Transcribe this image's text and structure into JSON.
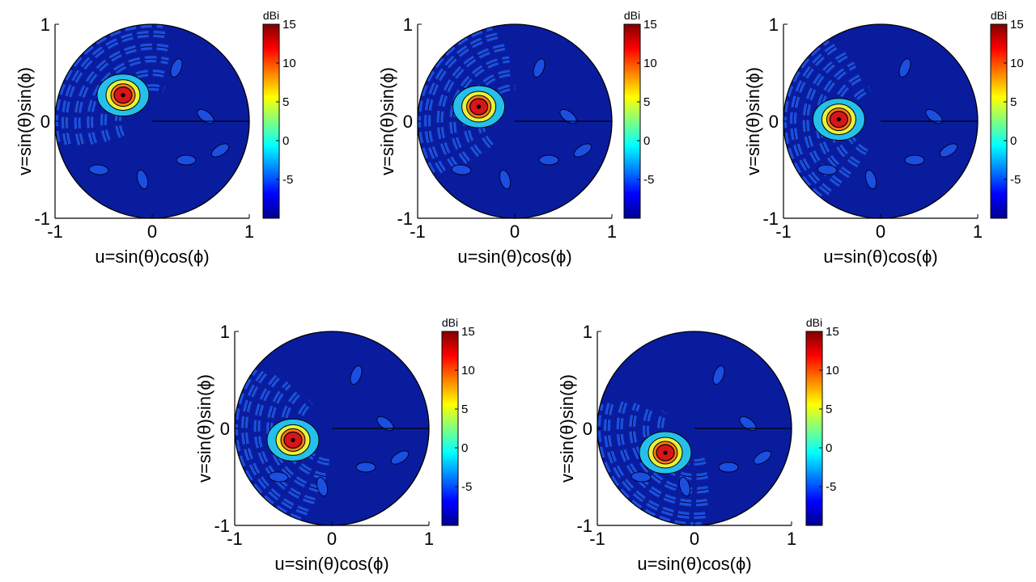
{
  "chart_data": [
    {
      "type": "heatmap",
      "xlabel": "u=sin(θ)cos(ϕ)",
      "ylabel": "v=sin(θ)sin(ϕ)",
      "xlim": [
        -1,
        1
      ],
      "ylim": [
        -1,
        1
      ],
      "x_ticks": [
        "-1",
        "0",
        "1"
      ],
      "y_ticks": [
        "-1",
        "0",
        "1"
      ],
      "colorbar": {
        "title": "dBi",
        "range": [
          -10,
          15
        ],
        "ticks": [
          "15",
          "10",
          "5",
          "0",
          "-5"
        ]
      },
      "peak": {
        "u": -0.3,
        "v": 0.27,
        "value_dbi": 15
      }
    },
    {
      "type": "heatmap",
      "xlabel": "u=sin(θ)cos(ϕ)",
      "ylabel": "v=sin(θ)sin(ϕ)",
      "xlim": [
        -1,
        1
      ],
      "ylim": [
        -1,
        1
      ],
      "x_ticks": [
        "-1",
        "0",
        "1"
      ],
      "y_ticks": [
        "-1",
        "0",
        "1"
      ],
      "colorbar": {
        "title": "dBi",
        "range": [
          -10,
          15
        ],
        "ticks": [
          "15",
          "10",
          "5",
          "0",
          "-5"
        ]
      },
      "peak": {
        "u": -0.37,
        "v": 0.15,
        "value_dbi": 15
      }
    },
    {
      "type": "heatmap",
      "xlabel": "u=sin(θ)cos(ϕ)",
      "ylabel": "v=sin(θ)sin(ϕ)",
      "xlim": [
        -1,
        1
      ],
      "ylim": [
        -1,
        1
      ],
      "x_ticks": [
        "-1",
        "0",
        "1"
      ],
      "y_ticks": [
        "-1",
        "0",
        "1"
      ],
      "colorbar": {
        "title": "dBi",
        "range": [
          -10,
          15
        ],
        "ticks": [
          "15",
          "10",
          "5",
          "0",
          "-5"
        ]
      },
      "peak": {
        "u": -0.43,
        "v": 0.02,
        "value_dbi": 15
      }
    },
    {
      "type": "heatmap",
      "xlabel": "u=sin(θ)cos(ϕ)",
      "ylabel": "v=sin(θ)sin(ϕ)",
      "xlim": [
        -1,
        1
      ],
      "ylim": [
        -1,
        1
      ],
      "x_ticks": [
        "-1",
        "0",
        "1"
      ],
      "y_ticks": [
        "-1",
        "0",
        "1"
      ],
      "colorbar": {
        "title": "dBi",
        "range": [
          -10,
          15
        ],
        "ticks": [
          "15",
          "10",
          "5",
          "0",
          "-5"
        ]
      },
      "peak": {
        "u": -0.4,
        "v": -0.12,
        "value_dbi": 15
      }
    },
    {
      "type": "heatmap",
      "xlabel": "u=sin(θ)cos(ϕ)",
      "ylabel": "v=sin(θ)sin(ϕ)",
      "xlim": [
        -1,
        1
      ],
      "ylim": [
        -1,
        1
      ],
      "x_ticks": [
        "-1",
        "0",
        "1"
      ],
      "y_ticks": [
        "-1",
        "0",
        "1"
      ],
      "colorbar": {
        "title": "dBi",
        "range": [
          -10,
          15
        ],
        "ticks": [
          "15",
          "10",
          "5",
          "0",
          "-5"
        ]
      },
      "peak": {
        "u": -0.3,
        "v": -0.25,
        "value_dbi": 15
      }
    }
  ]
}
